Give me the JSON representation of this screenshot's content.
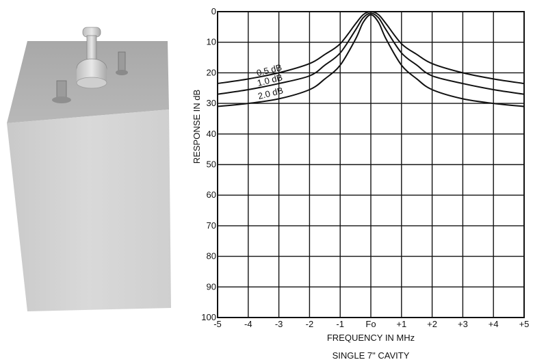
{
  "chart_data": {
    "type": "line",
    "title": "",
    "caption": "SINGLE 7\" CAVITY",
    "xlabel": "FREQUENCY IN MHz",
    "ylabel": "RESPONSE IN dB",
    "xlim": [
      -5,
      5
    ],
    "ylim": [
      0,
      100
    ],
    "y_inverted": true,
    "grid": true,
    "x_ticks": [
      -5,
      -4,
      -3,
      -2,
      -1,
      0,
      1,
      2,
      3,
      4,
      5
    ],
    "x_tick_labels": [
      "-5",
      "-4",
      "-3",
      "-2",
      "-1",
      "Fo",
      "+1",
      "+2",
      "+3",
      "+4",
      "+5"
    ],
    "y_ticks": [
      0,
      10,
      20,
      30,
      40,
      50,
      60,
      70,
      80,
      90,
      100
    ],
    "y_tick_labels": [
      "0",
      "10",
      "20",
      "30",
      "40",
      "50",
      "60",
      "70",
      "80",
      "90",
      "100"
    ],
    "series": [
      {
        "name": "0.5 dB",
        "x": [
          -5,
          -4,
          -3,
          -2,
          -1.5,
          -1,
          -0.5,
          -0.25,
          0,
          0.25,
          0.5,
          1,
          1.5,
          2,
          3,
          4,
          5
        ],
        "y": [
          23.5,
          22,
          20,
          17,
          14,
          10.5,
          4,
          1,
          0,
          1,
          4,
          10.5,
          14,
          17,
          20,
          22,
          23.5
        ]
      },
      {
        "name": "1.0 dB",
        "x": [
          -5,
          -4,
          -3,
          -2,
          -1.5,
          -1,
          -0.5,
          -0.25,
          0,
          0.25,
          0.5,
          1,
          1.5,
          2,
          3,
          4,
          5
        ],
        "y": [
          27,
          25.5,
          23.5,
          21,
          17.5,
          13.5,
          6,
          2,
          0.5,
          2,
          6,
          13.5,
          17.5,
          21,
          23.5,
          25.5,
          27
        ]
      },
      {
        "name": "2.0 dB",
        "x": [
          -5,
          -4,
          -3,
          -2,
          -1.5,
          -1,
          -0.5,
          -0.25,
          0,
          0.25,
          0.5,
          1,
          1.5,
          2,
          3,
          4,
          5
        ],
        "y": [
          31,
          30,
          28.5,
          25.5,
          22,
          17.5,
          9,
          3.5,
          1,
          3.5,
          9,
          17.5,
          22,
          25.5,
          28.5,
          30,
          31
        ]
      }
    ]
  },
  "photo": {
    "description_icon": "cavity-filter-photo"
  }
}
